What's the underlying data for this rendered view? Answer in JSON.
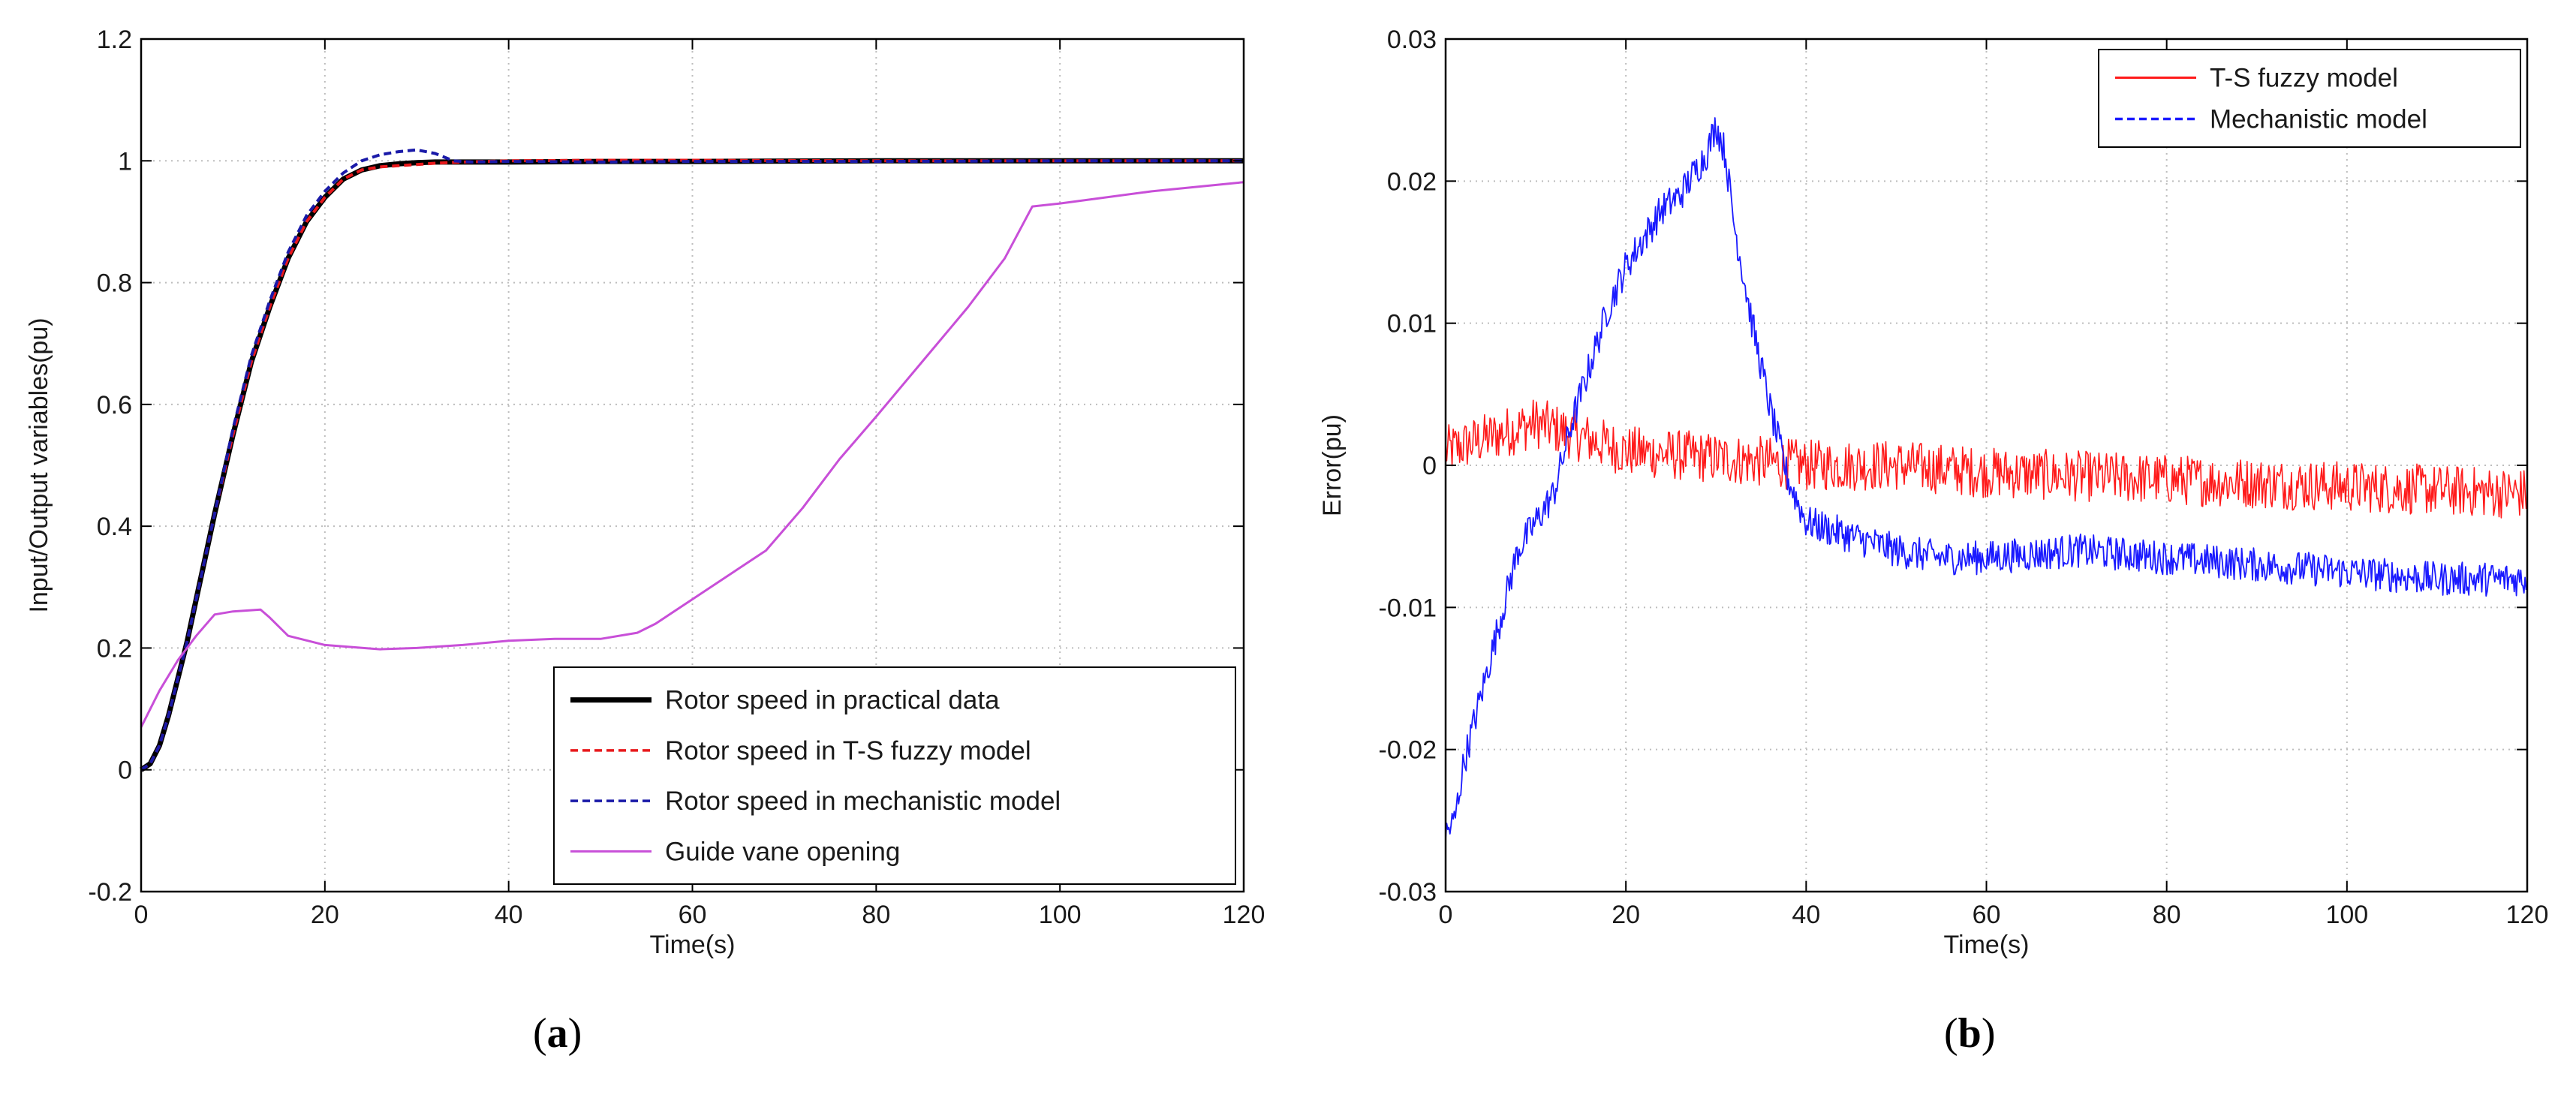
{
  "colors": {
    "practical": "#000000",
    "ts": "#e8191c",
    "mech": "#1a1aa8",
    "guide": "#c84fd8",
    "ts_b": "#ff1a1a",
    "mech_b": "#1a1aff",
    "grid": "#bdbdbd"
  },
  "panels": {
    "a": {
      "prefix": "(",
      "letter": "a",
      "suffix": ")"
    },
    "b": {
      "prefix": "(",
      "letter": "b",
      "suffix": ")"
    }
  },
  "chart_data": [
    {
      "id": "a",
      "type": "line",
      "title": "",
      "xlabel": "Time(s)",
      "ylabel": "Input/Output variables(pu)",
      "xlim": [
        0,
        120
      ],
      "ylim": [
        -0.2,
        1.2
      ],
      "xticks": [
        0,
        20,
        40,
        60,
        80,
        100,
        120
      ],
      "yticks": [
        -0.2,
        0,
        0.2,
        0.4,
        0.6,
        0.8,
        1,
        1.2
      ],
      "ytick_labels": [
        "-0.2",
        "0",
        "0.2",
        "0.4",
        "0.6",
        "0.8",
        "1",
        "1.2"
      ],
      "grid": true,
      "legend_position": "bottom-right",
      "series": [
        {
          "name": "Rotor speed in practical data",
          "color_key": "practical",
          "style": "solid-thick",
          "x": [
            0,
            1,
            2,
            3,
            4,
            5,
            6,
            7,
            8,
            10,
            12,
            14,
            16,
            18,
            20,
            22,
            24,
            26,
            28,
            30,
            32,
            35,
            40,
            50,
            60,
            80,
            100,
            120
          ],
          "y": [
            0,
            0.01,
            0.04,
            0.09,
            0.15,
            0.21,
            0.28,
            0.35,
            0.42,
            0.55,
            0.67,
            0.76,
            0.84,
            0.9,
            0.94,
            0.97,
            0.985,
            0.992,
            0.995,
            0.997,
            0.998,
            0.998,
            0.998,
            0.999,
            0.999,
            1.0,
            1.0,
            1.0
          ]
        },
        {
          "name": "Rotor speed in T-S fuzzy model",
          "color_key": "ts",
          "style": "dashed",
          "x": [
            0,
            1,
            2,
            3,
            4,
            5,
            6,
            7,
            8,
            10,
            12,
            14,
            16,
            18,
            20,
            22,
            24,
            26,
            28,
            30,
            32,
            35,
            40,
            50,
            60,
            80,
            100,
            120
          ],
          "y": [
            0,
            0.01,
            0.04,
            0.09,
            0.15,
            0.21,
            0.28,
            0.35,
            0.42,
            0.55,
            0.67,
            0.76,
            0.84,
            0.9,
            0.94,
            0.97,
            0.985,
            0.99,
            0.992,
            0.994,
            0.996,
            0.998,
            1.0,
            1.001,
            1.001,
            1.0,
            1.0,
            1.0
          ]
        },
        {
          "name": "Rotor speed in mechanistic model",
          "color_key": "mech",
          "style": "dashed",
          "x": [
            0,
            1,
            2,
            3,
            4,
            5,
            6,
            7,
            8,
            10,
            12,
            14,
            16,
            18,
            20,
            22,
            24,
            26,
            28,
            30,
            32,
            34,
            36,
            40,
            50,
            60,
            80,
            100,
            120
          ],
          "y": [
            0,
            0.01,
            0.04,
            0.09,
            0.15,
            0.21,
            0.28,
            0.35,
            0.42,
            0.56,
            0.68,
            0.77,
            0.85,
            0.91,
            0.95,
            0.98,
            1.0,
            1.01,
            1.015,
            1.018,
            1.012,
            1.0,
            0.998,
            0.999,
            0.998,
            0.999,
            0.999,
            1.0,
            1.0
          ]
        },
        {
          "name": "Guide vane opening",
          "color_key": "guide",
          "style": "solid",
          "x": [
            0,
            2,
            4,
            6,
            8,
            10,
            13,
            14,
            16,
            20,
            26,
            30,
            35,
            40,
            45,
            50,
            54,
            56,
            60,
            65,
            68,
            72,
            76,
            80,
            85,
            90,
            94,
            97,
            100,
            110,
            120
          ],
          "y": [
            0.07,
            0.13,
            0.18,
            0.22,
            0.255,
            0.26,
            0.263,
            0.25,
            0.22,
            0.205,
            0.198,
            0.2,
            0.205,
            0.212,
            0.215,
            0.215,
            0.225,
            0.24,
            0.28,
            0.33,
            0.36,
            0.43,
            0.51,
            0.58,
            0.67,
            0.76,
            0.84,
            0.925,
            0.93,
            0.95,
            0.965
          ]
        }
      ]
    },
    {
      "id": "b",
      "type": "line",
      "title": "",
      "xlabel": "Time(s)",
      "ylabel": "Error(pu)",
      "xlim": [
        0,
        120
      ],
      "ylim": [
        -0.03,
        0.03
      ],
      "xticks": [
        0,
        20,
        40,
        60,
        80,
        100,
        120
      ],
      "yticks": [
        -0.03,
        -0.02,
        -0.01,
        0,
        0.01,
        0.02,
        0.03
      ],
      "ytick_labels": [
        "-0.03",
        "-0.02",
        "-0.01",
        "0",
        "0.01",
        "0.02",
        "0.03"
      ],
      "grid": true,
      "legend_position": "top-right",
      "series": [
        {
          "name": "T-S fuzzy model",
          "color_key": "ts_b",
          "style": "solid-noisy",
          "noise_amplitude": 0.0018,
          "x": [
            0,
            5,
            10,
            15,
            20,
            30,
            40,
            50,
            60,
            80,
            100,
            120
          ],
          "y": [
            0.001,
            0.002,
            0.003,
            0.002,
            0.001,
            0.0005,
            0.0,
            0.0,
            -0.0005,
            -0.001,
            -0.0015,
            -0.002
          ]
        },
        {
          "name": "Mechanistic model",
          "color_key": "mech_b",
          "style": "dashed-noisy",
          "noise_amplitude": 0.0012,
          "x": [
            0,
            1,
            2,
            4,
            6,
            8,
            10,
            12,
            14,
            16,
            18,
            20,
            22,
            24,
            26,
            28,
            29,
            30,
            31,
            32,
            34,
            36,
            38,
            40,
            45,
            50,
            55,
            60,
            70,
            80,
            90,
            100,
            110,
            120
          ],
          "y": [
            -0.026,
            -0.025,
            -0.021,
            -0.016,
            -0.011,
            -0.006,
            -0.004,
            -0.002,
            0.003,
            0.007,
            0.011,
            0.014,
            0.016,
            0.018,
            0.019,
            0.021,
            0.022,
            0.024,
            0.022,
            0.017,
            0.01,
            0.004,
            -0.001,
            -0.004,
            -0.005,
            -0.006,
            -0.0065,
            -0.0065,
            -0.006,
            -0.0065,
            -0.007,
            -0.0075,
            -0.008,
            -0.008
          ]
        }
      ]
    }
  ]
}
